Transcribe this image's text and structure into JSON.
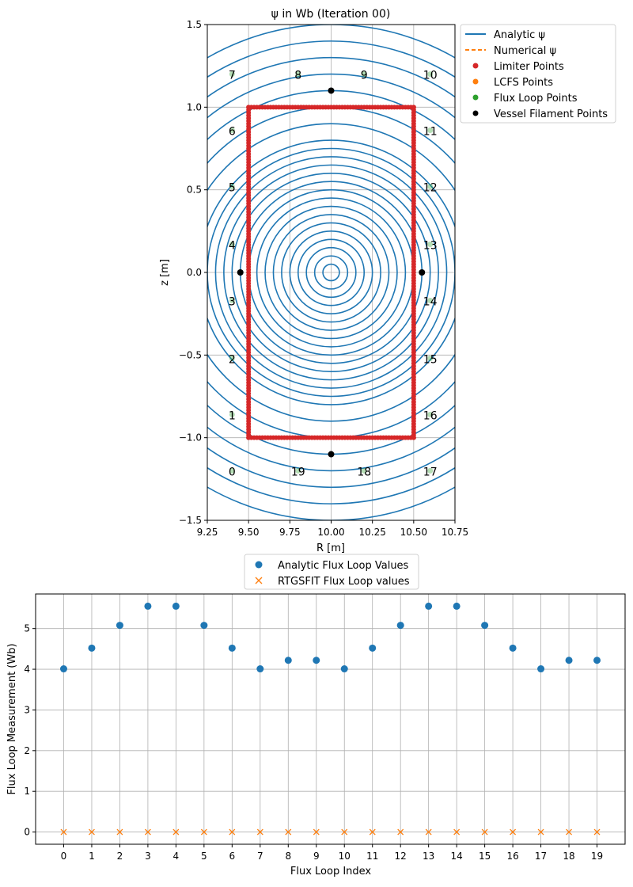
{
  "chart_data": [
    {
      "type": "contour",
      "title": "ψ in Wb (Iteration 00)",
      "xlabel": "R [m]",
      "ylabel": "z [m]",
      "xlim": [
        9.25,
        10.75
      ],
      "ylim": [
        -1.5,
        1.5
      ],
      "xticks": [
        "9.25",
        "9.50",
        "9.75",
        "10.00",
        "10.25",
        "10.50",
        "10.75"
      ],
      "yticks": [
        "−1.5",
        "−1.0",
        "−0.5",
        "0.0",
        "0.5",
        "1.0",
        "1.5"
      ],
      "grid": true,
      "legend": {
        "placement": "outside-right-top",
        "entries": [
          {
            "label": "Analytic ψ",
            "marker": "line",
            "color": "#1f77b4"
          },
          {
            "label": "Numerical ψ",
            "marker": "dashed-line",
            "color": "#ff7f0e"
          },
          {
            "label": "Limiter Points",
            "marker": "dot",
            "color": "#d62728"
          },
          {
            "label": "LCFS Points",
            "marker": "dot",
            "color": "#ff7f0e"
          },
          {
            "label": "Flux Loop Points",
            "marker": "dot",
            "color": "#2ca02c"
          },
          {
            "label": "Vessel Filament Points",
            "marker": "dot",
            "color": "#000000"
          }
        ]
      },
      "contours": {
        "center": [
          10.0,
          0.0
        ],
        "radii": [
          0.05,
          0.1,
          0.15,
          0.2,
          0.25,
          0.3,
          0.35,
          0.4,
          0.45,
          0.5,
          0.55,
          0.6,
          0.65,
          0.7,
          0.75,
          0.8,
          0.9,
          1.0,
          1.1,
          1.2,
          1.3,
          1.4,
          1.5
        ],
        "color": "#1f77b4"
      },
      "limiter": {
        "r_min": 9.5,
        "r_max": 10.5,
        "z_min": -1.0,
        "z_max": 1.0,
        "color": "#d62728"
      },
      "vessel_filaments": [
        [
          10.0,
          1.1
        ],
        [
          10.0,
          -1.1
        ],
        [
          9.45,
          0.0
        ],
        [
          10.55,
          0.0
        ]
      ],
      "flux_loops": [
        {
          "label": "0",
          "r": 9.4,
          "z": -1.2
        },
        {
          "label": "1",
          "r": 9.4,
          "z": -0.86
        },
        {
          "label": "2",
          "r": 9.4,
          "z": -0.52
        },
        {
          "label": "3",
          "r": 9.4,
          "z": -0.17
        },
        {
          "label": "4",
          "r": 9.4,
          "z": 0.17
        },
        {
          "label": "5",
          "r": 9.4,
          "z": 0.52
        },
        {
          "label": "6",
          "r": 9.4,
          "z": 0.86
        },
        {
          "label": "7",
          "r": 9.4,
          "z": 1.2
        },
        {
          "label": "8",
          "r": 9.8,
          "z": 1.2
        },
        {
          "label": "9",
          "r": 10.2,
          "z": 1.2
        },
        {
          "label": "10",
          "r": 10.6,
          "z": 1.2
        },
        {
          "label": "11",
          "r": 10.6,
          "z": 0.86
        },
        {
          "label": "12",
          "r": 10.6,
          "z": 0.52
        },
        {
          "label": "13",
          "r": 10.6,
          "z": 0.17
        },
        {
          "label": "14",
          "r": 10.6,
          "z": -0.17
        },
        {
          "label": "15",
          "r": 10.6,
          "z": -0.52
        },
        {
          "label": "16",
          "r": 10.6,
          "z": -0.86
        },
        {
          "label": "17",
          "r": 10.6,
          "z": -1.2
        },
        {
          "label": "18",
          "r": 10.2,
          "z": -1.2
        },
        {
          "label": "19",
          "r": 9.8,
          "z": -1.2
        }
      ]
    },
    {
      "type": "scatter",
      "xlabel": "Flux Loop Index",
      "ylabel": "Flux Loop Measurement (Wb)",
      "xlim": [
        -1,
        20
      ],
      "ylim": [
        -0.3,
        5.85
      ],
      "xticks": [
        "0",
        "1",
        "2",
        "3",
        "4",
        "5",
        "6",
        "7",
        "8",
        "9",
        "10",
        "11",
        "12",
        "13",
        "14",
        "15",
        "16",
        "17",
        "18",
        "19"
      ],
      "yticks": [
        "0",
        "1",
        "2",
        "3",
        "4",
        "5"
      ],
      "grid": true,
      "legend_placement": "above-center",
      "x": [
        0,
        1,
        2,
        3,
        4,
        5,
        6,
        7,
        8,
        9,
        10,
        11,
        12,
        13,
        14,
        15,
        16,
        17,
        18,
        19
      ],
      "series": [
        {
          "name": "Analytic Flux Loop Values",
          "marker": "dot",
          "color": "#1f77b4",
          "values": [
            4.01,
            4.52,
            5.08,
            5.55,
            5.55,
            5.08,
            4.52,
            4.01,
            4.22,
            4.22,
            4.01,
            4.52,
            5.08,
            5.55,
            5.55,
            5.08,
            4.52,
            4.01,
            4.22,
            4.22
          ]
        },
        {
          "name": "RTGSFIT Flux Loop values",
          "marker": "x",
          "color": "#ff7f0e",
          "values": [
            0,
            0,
            0,
            0,
            0,
            0,
            0,
            0,
            0,
            0,
            0,
            0,
            0,
            0,
            0,
            0,
            0,
            0,
            0,
            0
          ]
        }
      ]
    }
  ]
}
